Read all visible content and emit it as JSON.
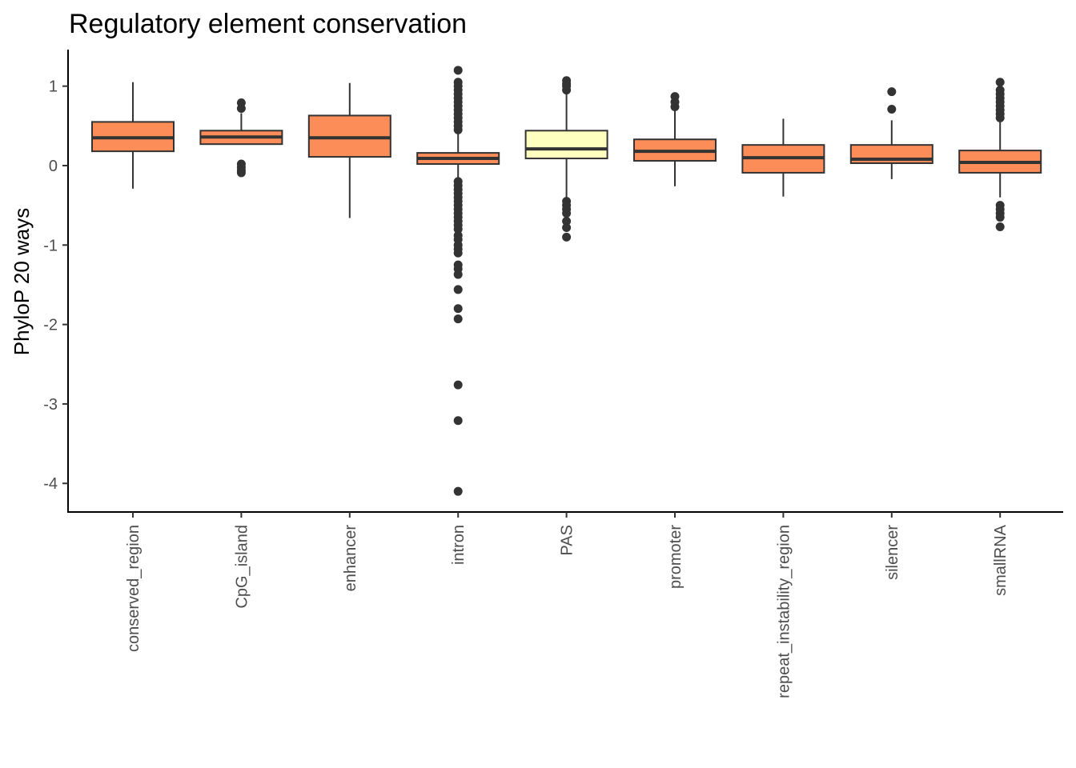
{
  "chart_data": {
    "type": "box",
    "title": "Regulatory element conservation",
    "xlabel": "",
    "ylabel": "PhyloP 20 ways",
    "ylim": [
      -4.36,
      1.46
    ],
    "yticks": [
      1,
      0,
      -1,
      -2,
      -3,
      -4
    ],
    "ytick_labels": [
      "1",
      "0",
      "-1",
      "-2",
      "-3",
      "-4"
    ],
    "grid": false,
    "legend": "none",
    "colors": {
      "default_fill": "#fc8d59",
      "highlight_fill": "#ffffbf",
      "line": "#333333"
    },
    "categories": [
      "conserved_region",
      "CpG_island",
      "enhancer",
      "intron",
      "PAS",
      "promoter",
      "repeat_instability_region",
      "silencer",
      "smallRNA"
    ],
    "boxes": [
      {
        "category": "conserved_region",
        "fill": "#fc8d59",
        "whisker_low": -0.29,
        "q1": 0.18,
        "median": 0.35,
        "q3": 0.55,
        "whisker_high": 1.05,
        "outliers": []
      },
      {
        "category": "CpG_island",
        "fill": "#fc8d59",
        "whisker_low": 0.27,
        "q1": 0.27,
        "median": 0.36,
        "q3": 0.44,
        "whisker_high": 0.66,
        "outliers": [
          0.72,
          0.79,
          0.02,
          -0.02,
          -0.06,
          -0.09
        ]
      },
      {
        "category": "enhancer",
        "fill": "#fc8d59",
        "whisker_low": -0.66,
        "q1": 0.11,
        "median": 0.35,
        "q3": 0.63,
        "whisker_high": 1.04,
        "outliers": []
      },
      {
        "category": "intron",
        "fill": "#fc8d59",
        "whisker_low": -0.17,
        "q1": 0.02,
        "median": 0.09,
        "q3": 0.16,
        "whisker_high": 0.42,
        "outliers": [
          0.45,
          0.5,
          0.55,
          0.6,
          0.65,
          0.7,
          0.75,
          0.8,
          0.85,
          0.9,
          0.95,
          1.0,
          1.05,
          1.2,
          -0.2,
          -0.25,
          -0.3,
          -0.35,
          -0.4,
          -0.45,
          -0.5,
          -0.55,
          -0.6,
          -0.65,
          -0.7,
          -0.75,
          -0.8,
          -0.88,
          -0.93,
          -1.0,
          -1.05,
          -1.1,
          -1.25,
          -1.3,
          -1.37,
          -1.56,
          -1.8,
          -1.93,
          -2.76,
          -3.21,
          -4.1
        ]
      },
      {
        "category": "PAS",
        "fill": "#ffffbf",
        "whisker_low": -0.4,
        "q1": 0.09,
        "median": 0.21,
        "q3": 0.44,
        "whisker_high": 0.92,
        "outliers": [
          0.95,
          1.0,
          1.03,
          1.07,
          -0.45,
          -0.5,
          -0.55,
          -0.6,
          -0.7,
          -0.78,
          -0.9
        ]
      },
      {
        "category": "promoter",
        "fill": "#fc8d59",
        "whisker_low": -0.26,
        "q1": 0.06,
        "median": 0.18,
        "q3": 0.33,
        "whisker_high": 0.7,
        "outliers": [
          0.74,
          0.8,
          0.87
        ]
      },
      {
        "category": "repeat_instability_region",
        "fill": "#fc8d59",
        "whisker_low": -0.39,
        "q1": -0.09,
        "median": 0.1,
        "q3": 0.26,
        "whisker_high": 0.59,
        "outliers": []
      },
      {
        "category": "silencer",
        "fill": "#fc8d59",
        "whisker_low": -0.17,
        "q1": 0.03,
        "median": 0.08,
        "q3": 0.26,
        "whisker_high": 0.57,
        "outliers": [
          0.71,
          0.93
        ]
      },
      {
        "category": "smallRNA",
        "fill": "#fc8d59",
        "whisker_low": -0.4,
        "q1": -0.09,
        "median": 0.04,
        "q3": 0.19,
        "whisker_high": 0.55,
        "outliers": [
          0.6,
          0.65,
          0.7,
          0.75,
          0.8,
          0.85,
          0.9,
          0.95,
          1.05,
          -0.5,
          -0.55,
          -0.6,
          -0.65,
          -0.77
        ]
      }
    ]
  }
}
